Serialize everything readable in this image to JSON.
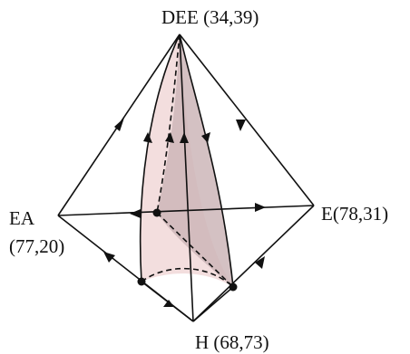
{
  "vertices": {
    "top": {
      "label": "DEE (34,39)"
    },
    "left": {
      "label_line1": "EA",
      "label_line2": "(77,20)"
    },
    "right": {
      "label": "E(78,31)"
    },
    "bottom": {
      "label": "H (68,73)"
    }
  },
  "colors": {
    "edges": "#111111",
    "surface_front": "#f3dede",
    "surface_side": "#cdb6b8"
  }
}
